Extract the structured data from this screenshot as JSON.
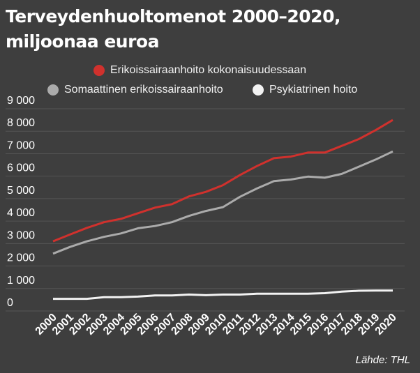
{
  "title": "Terveydenhuoltomenot  2000–2020, miljoonaa euroa",
  "source": "Lähde: THL",
  "chart_data": {
    "type": "line",
    "title": "Terveydenhuoltomenot  2000–2020, miljoonaa euroa",
    "xlabel": "",
    "ylabel": "",
    "ylim": [
      0,
      9000
    ],
    "yticks": [
      0,
      1000,
      2000,
      3000,
      4000,
      5000,
      6000,
      7000,
      8000,
      9000
    ],
    "ytick_labels": [
      "0",
      "1 000",
      "2 000",
      "3 000",
      "4 000",
      "5 000",
      "6 000",
      "7 000",
      "8 000",
      "9 000"
    ],
    "grid": true,
    "legend_position": "top",
    "x": [
      "2000",
      "2001",
      "2002",
      "2003",
      "2004",
      "2005",
      "2006",
      "2007",
      "2008",
      "2009",
      "2010",
      "2011",
      "2012",
      "2013",
      "2014",
      "2015",
      "2016",
      "2017",
      "2018",
      "2019",
      "2020"
    ],
    "series": [
      {
        "name": "Erikoissairaanhoito kokonaisuudessaan",
        "color": "#d0312d",
        "values": [
          3100,
          3400,
          3700,
          3950,
          4100,
          4350,
          4600,
          4750,
          5100,
          5300,
          5600,
          6050,
          6450,
          6800,
          6870,
          7050,
          7050,
          7350,
          7650,
          8050,
          8500
        ]
      },
      {
        "name": "Somaattinen erikoissairaanhoito",
        "color": "#ababab",
        "values": [
          2550,
          2850,
          3100,
          3300,
          3450,
          3680,
          3780,
          3950,
          4230,
          4450,
          4620,
          5080,
          5450,
          5780,
          5850,
          5980,
          5930,
          6100,
          6420,
          6740,
          7100
        ]
      },
      {
        "name": "Psykiatrinen hoito",
        "color": "#f2f2f2",
        "values": [
          540,
          540,
          540,
          610,
          610,
          640,
          690,
          690,
          730,
          700,
          730,
          730,
          770,
          770,
          770,
          770,
          790,
          860,
          900,
          910,
          910
        ]
      }
    ]
  }
}
